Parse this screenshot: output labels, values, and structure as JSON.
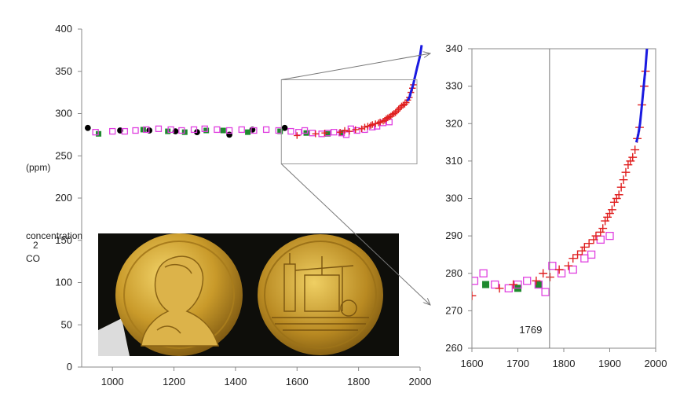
{
  "chart_data": [
    {
      "type": "scatter",
      "xlim": [
        900,
        2000
      ],
      "ylim": [
        0,
        400
      ],
      "xticks": [
        1000,
        1200,
        1400,
        1600,
        1800,
        2000
      ],
      "yticks": [
        0,
        50,
        100,
        150,
        200,
        250,
        300,
        350,
        400
      ],
      "ylabel_lines": [
        "(ppm)",
        "concentration",
        "2",
        "CO"
      ],
      "grid": false,
      "zoom_box": {
        "x": [
          1600,
          2000
        ],
        "y": [
          260,
          340
        ]
      },
      "inset_image": "medal-photo",
      "series": [
        {
          "marker": "filled-circle",
          "color": "#000000",
          "points": [
            [
              920,
              283
            ],
            [
              1025,
              280
            ],
            [
              1120,
              280
            ],
            [
              1205,
              279
            ],
            [
              1275,
              278
            ],
            [
              1380,
              275
            ],
            [
              1455,
              281
            ],
            [
              1560,
              283
            ]
          ]
        },
        {
          "marker": "filled-square",
          "color": "#1e8a2e",
          "points": [
            [
              955,
              276
            ],
            [
              1100,
              281
            ],
            [
              1180,
              279
            ],
            [
              1235,
              278
            ],
            [
              1305,
              280
            ],
            [
              1360,
              280
            ],
            [
              1440,
              278
            ],
            [
              1545,
              279
            ],
            [
              1630,
              277
            ],
            [
              1700,
              276
            ],
            [
              1745,
              277
            ]
          ]
        },
        {
          "marker": "open-square",
          "color": "#e040e0",
          "points": [
            [
              945,
              278
            ],
            [
              1000,
              279
            ],
            [
              1040,
              279
            ],
            [
              1075,
              280
            ],
            [
              1110,
              281
            ],
            [
              1150,
              282
            ],
            [
              1190,
              281
            ],
            [
              1225,
              280
            ],
            [
              1265,
              281
            ],
            [
              1300,
              282
            ],
            [
              1340,
              281
            ],
            [
              1380,
              280
            ],
            [
              1420,
              281
            ],
            [
              1460,
              280
            ],
            [
              1500,
              281
            ],
            [
              1540,
              280
            ],
            [
              1580,
              279
            ],
            [
              1605,
              278
            ],
            [
              1625,
              280
            ],
            [
              1650,
              277
            ],
            [
              1680,
              276
            ],
            [
              1700,
              277
            ],
            [
              1720,
              278
            ],
            [
              1745,
              277
            ],
            [
              1760,
              275
            ],
            [
              1775,
              282
            ],
            [
              1795,
              280
            ],
            [
              1820,
              281
            ],
            [
              1845,
              284
            ],
            [
              1860,
              285
            ],
            [
              1880,
              289
            ],
            [
              1900,
              290
            ]
          ]
        },
        {
          "marker": "plus",
          "color": "#e02020",
          "points": [
            [
              1600,
              274
            ],
            [
              1660,
              276
            ],
            [
              1690,
              277
            ],
            [
              1740,
              278
            ],
            [
              1755,
              280
            ],
            [
              1770,
              279
            ],
            [
              1790,
              281
            ],
            [
              1810,
              282
            ],
            [
              1820,
              284
            ],
            [
              1830,
              285
            ],
            [
              1840,
              286
            ],
            [
              1845,
              287
            ],
            [
              1855,
              288
            ],
            [
              1865,
              289
            ],
            [
              1870,
              290
            ],
            [
              1880,
              291
            ],
            [
              1885,
              292
            ],
            [
              1890,
              294
            ],
            [
              1895,
              295
            ],
            [
              1900,
              296
            ],
            [
              1905,
              297
            ],
            [
              1910,
              299
            ],
            [
              1915,
              300
            ],
            [
              1920,
              301
            ],
            [
              1925,
              303
            ],
            [
              1930,
              305
            ],
            [
              1935,
              307
            ],
            [
              1940,
              309
            ],
            [
              1945,
              310
            ],
            [
              1950,
              311
            ],
            [
              1955,
              313
            ],
            [
              1960,
              316
            ],
            [
              1965,
              319
            ],
            [
              1970,
              325
            ],
            [
              1975,
              330
            ],
            [
              1978,
              334
            ]
          ]
        },
        {
          "marker": "line",
          "color": "#1a1ae0",
          "points": [
            [
              1958,
              315
            ],
            [
              1962,
              317
            ],
            [
              1966,
              320
            ],
            [
              1970,
              325
            ],
            [
              1974,
              330
            ],
            [
              1978,
              335
            ],
            [
              1981,
              340
            ],
            [
              1985,
              346
            ],
            [
              1990,
              354
            ],
            [
              1995,
              361
            ],
            [
              2000,
              369
            ],
            [
              2005,
              381
            ]
          ]
        }
      ]
    },
    {
      "type": "scatter",
      "xlim": [
        1600,
        2000
      ],
      "ylim": [
        260,
        340
      ],
      "xticks": [
        1600,
        1700,
        1800,
        1900,
        2000
      ],
      "yticks": [
        260,
        270,
        280,
        290,
        300,
        310,
        320,
        330,
        340
      ],
      "grid": false,
      "vline": {
        "x": 1769,
        "label": "1769"
      }
    }
  ]
}
